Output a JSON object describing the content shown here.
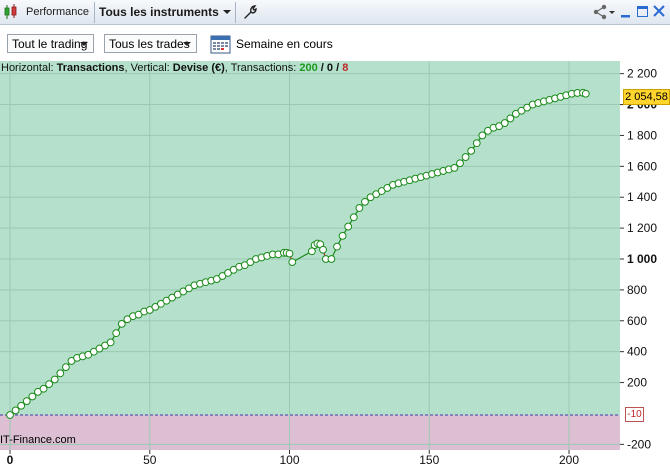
{
  "titlebar": {
    "app_label": "Performance",
    "instrument_label": "Tous les instruments",
    "icons": [
      "candlestick-app-icon",
      "wrench-icon",
      "share-icon",
      "minimize-icon",
      "maximize-icon",
      "close-icon"
    ]
  },
  "toolbar": {
    "trading_filter": "Tout le trading",
    "trades_filter": "Tous les trades",
    "period_label": "Semaine en cours"
  },
  "info_bar": {
    "prefix": "Horizontal: ",
    "horizontal": "Transactions",
    "sep1": ", Vertical: ",
    "vertical": "Devise (€)",
    "sep2": ", Transactions: ",
    "count_total": "200",
    "slash1": " / ",
    "count_zero": "0",
    "slash2": " / ",
    "count_neg": "8"
  },
  "last_value_label": "2 054,58",
  "reference_label": "-10",
  "watermark": "IT-Finance.com",
  "colors": {
    "plot_positive": "#b4e0cc",
    "plot_negative": "#dcbfd2",
    "line_up": "#1a8a1a",
    "line_down": "#c0282a",
    "last_value_bg": "#ffd52e"
  },
  "chart_data": {
    "type": "line",
    "xlabel": "Transactions",
    "ylabel": "Devise (€)",
    "xlim": [
      0,
      210
    ],
    "ylim": [
      -200,
      2200
    ],
    "x_ticks": [
      0,
      50,
      100,
      150,
      200
    ],
    "x_tick_labels": [
      "0",
      "50",
      "100",
      "150",
      "200"
    ],
    "y_ticks": [
      2200,
      2000,
      1800,
      1600,
      1400,
      1200,
      1000,
      800,
      600,
      400,
      200,
      -200
    ],
    "y_tick_labels": [
      "2 200",
      "2 000",
      "1 800",
      "1 600",
      "1 400",
      "1 200",
      "1 000",
      "800",
      "600",
      "400",
      "200",
      "-200"
    ],
    "bold_y_ticks": [
      2000,
      1000
    ],
    "bold_x_ticks": [
      0
    ],
    "grid": true,
    "reference_line": -10,
    "last_value": 2054.58,
    "series": [
      {
        "markers": "circle",
        "x": [
          0,
          2,
          4,
          6,
          8,
          10,
          12,
          14,
          16,
          18,
          20,
          22,
          24,
          26,
          28,
          30,
          32,
          34,
          36,
          38,
          40,
          42,
          44,
          46,
          48,
          50,
          52,
          54,
          56,
          58,
          60,
          62,
          64,
          66,
          68,
          70,
          72,
          74,
          76,
          78,
          80,
          82,
          84,
          86,
          88,
          90,
          92,
          94,
          96,
          98,
          99,
          100,
          101,
          108,
          109,
          110,
          111,
          112,
          113,
          115,
          117,
          119,
          121,
          123,
          125,
          127,
          129,
          131,
          133,
          135,
          137,
          139,
          141,
          143,
          145,
          147,
          149,
          151,
          153,
          155,
          157,
          159,
          161,
          163,
          165,
          167,
          169,
          171,
          173,
          175,
          177,
          179,
          181,
          183,
          185,
          187,
          189,
          191,
          193,
          195,
          197,
          199,
          201,
          203,
          205,
          206,
          207
        ],
        "y": [
          -10,
          20,
          50,
          80,
          110,
          140,
          160,
          190,
          220,
          260,
          300,
          340,
          360,
          370,
          380,
          400,
          420,
          440,
          460,
          520,
          580,
          610,
          630,
          640,
          660,
          670,
          690,
          710,
          730,
          750,
          770,
          790,
          810,
          830,
          840,
          850,
          860,
          870,
          890,
          910,
          930,
          950,
          960,
          980,
          1000,
          1010,
          1020,
          1030,
          1030,
          1040,
          1040,
          1035,
          980,
          1050,
          1090,
          1100,
          1095,
          1060,
          1000,
          1000,
          1080,
          1150,
          1210,
          1270,
          1330,
          1370,
          1400,
          1420,
          1440,
          1460,
          1480,
          1490,
          1500,
          1510,
          1520,
          1530,
          1540,
          1550,
          1560,
          1570,
          1580,
          1590,
          1620,
          1660,
          1700,
          1750,
          1800,
          1830,
          1850,
          1860,
          1880,
          1910,
          1940,
          1960,
          1980,
          2000,
          2010,
          2020,
          2030,
          2040,
          2050,
          2060,
          2070,
          2075,
          2076,
          2070,
          2054.58
        ],
        "down_segments_x": [
          [
            100,
            101
          ],
          [
            111,
            113
          ]
        ]
      }
    ]
  }
}
